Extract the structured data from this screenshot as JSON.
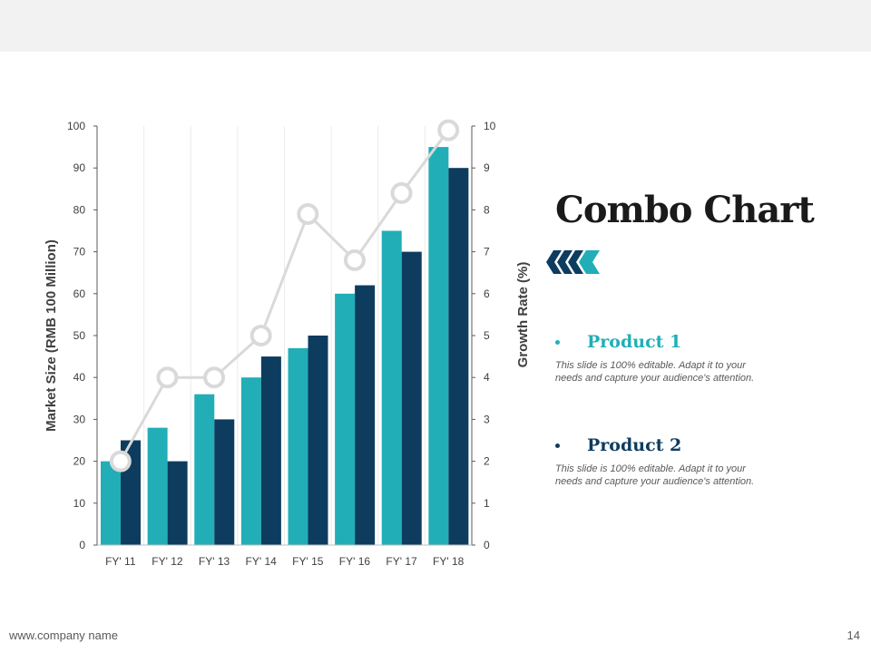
{
  "slide": {
    "title": "Combo Chart",
    "footer_url": "www.company name",
    "page_number": "14"
  },
  "legend": [
    {
      "label": "Product 1",
      "description": "This slide is 100% editable. Adapt it to your needs and capture your audience's attention.",
      "color": "#21aeb7"
    },
    {
      "label": "Product 2",
      "description": "This slide is 100% editable. Adapt it to your needs and capture your audience's attention.",
      "color": "#0d3c5e"
    }
  ],
  "colors": {
    "product1": "#21aeb7",
    "product2": "#0d3c5e",
    "growth_line": "#d9d9d9",
    "background_band": "#f2f2f2"
  },
  "chart_data": {
    "type": "bar",
    "title": "Combo Chart",
    "categories": [
      "FY' 11",
      "FY' 12",
      "FY' 13",
      "FY' 14",
      "FY' 15",
      "FY' 16",
      "FY' 17",
      "FY' 18"
    ],
    "series": [
      {
        "name": "Product 1",
        "type": "bar",
        "axis": "left",
        "values": [
          20,
          28,
          36,
          40,
          47,
          60,
          75,
          95
        ]
      },
      {
        "name": "Product 2",
        "type": "bar",
        "axis": "left",
        "values": [
          25,
          20,
          30,
          45,
          50,
          62,
          70,
          90
        ]
      },
      {
        "name": "Growth Rate",
        "type": "line",
        "axis": "right",
        "values": [
          2.0,
          4.0,
          4.0,
          5.0,
          7.9,
          6.8,
          8.4,
          9.9
        ]
      }
    ],
    "ylabel": "Market Size (RMB 100 Million)",
    "ylim": [
      0,
      100
    ],
    "yticks": [
      0,
      10,
      20,
      30,
      40,
      50,
      60,
      70,
      80,
      90,
      100
    ],
    "y2label": "Growth Rate (%)",
    "y2lim": [
      0,
      10
    ],
    "y2ticks": [
      0,
      1,
      2,
      3,
      4,
      5,
      6,
      7,
      8,
      9,
      10
    ],
    "grid": "vertical"
  }
}
